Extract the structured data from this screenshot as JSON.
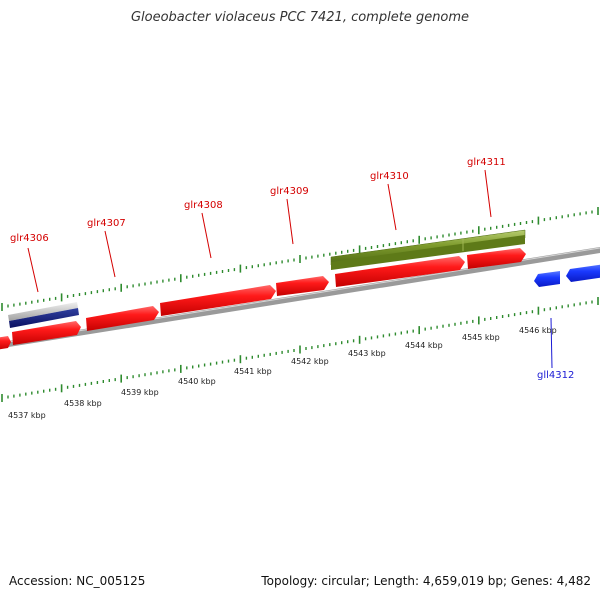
{
  "title": "Gloeobacter violaceus PCC 7421, complete genome",
  "accession_text": "Accession: NC_005125",
  "summary_text": "Topology: circular; Length: 4,659,019 bp; Genes: 4,482",
  "colors": {
    "forward_gene": "#ee1111",
    "reverse_gene": "#1133ee",
    "rna_feature": "#6e8e22",
    "backbone": "#999999",
    "forward_ticks": "#2e8b2e",
    "reverse_ticks": "#2e8b2e",
    "label_forward": "#d40000",
    "label_reverse": "#1a1ad4"
  },
  "genes": [
    {
      "name": "glr4306",
      "strand": "+",
      "labeled": true
    },
    {
      "name": "glr4307",
      "strand": "+",
      "labeled": true
    },
    {
      "name": "glr4308",
      "strand": "+",
      "labeled": true
    },
    {
      "name": "glr4309",
      "strand": "+",
      "labeled": true
    },
    {
      "name": "glr4310",
      "strand": "+",
      "labeled": true
    },
    {
      "name": "glr4311",
      "strand": "+",
      "labeled": true
    },
    {
      "name": "gll4312",
      "strand": "-",
      "labeled": true
    }
  ],
  "kbp_labels": [
    "4537 kbp",
    "4538 kbp",
    "4539 kbp",
    "4540 kbp",
    "4541 kbp",
    "4542 kbp",
    "4543 kbp",
    "4544 kbp",
    "4545 kbp",
    "4546 kbp"
  ]
}
